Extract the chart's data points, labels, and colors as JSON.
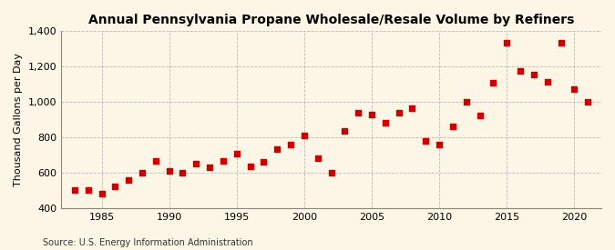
{
  "title": "Annual Pennsylvania Propane Wholesale/Resale Volume by Refiners",
  "ylabel": "Thousand Gallons per Day",
  "source": "Source: U.S. Energy Information Administration",
  "background_color": "#fdf5e6",
  "marker_color": "#cc0000",
  "xlim": [
    1982,
    2022
  ],
  "ylim": [
    400,
    1400
  ],
  "yticks": [
    400,
    600,
    800,
    1000,
    1200,
    1400
  ],
  "ytick_labels": [
    "400",
    "600",
    "800",
    "1,000",
    "1,200",
    "1,400"
  ],
  "xticks": [
    1985,
    1990,
    1995,
    2000,
    2005,
    2010,
    2015,
    2020
  ],
  "years": [
    1983,
    1984,
    1985,
    1986,
    1987,
    1988,
    1989,
    1990,
    1991,
    1992,
    1993,
    1994,
    1995,
    1996,
    1997,
    1998,
    1999,
    2000,
    2001,
    2002,
    2003,
    2004,
    2005,
    2006,
    2007,
    2008,
    2009,
    2010,
    2011,
    2012,
    2013,
    2014,
    2015,
    2016,
    2017,
    2018,
    2019,
    2020,
    2021
  ],
  "values": [
    500,
    500,
    480,
    520,
    560,
    600,
    665,
    610,
    600,
    650,
    630,
    665,
    705,
    635,
    660,
    735,
    760,
    810,
    680,
    600,
    835,
    940,
    930,
    880,
    940,
    965,
    780,
    760,
    860,
    1000,
    925,
    1110,
    1335,
    1175,
    1155,
    1115,
    1335,
    1070,
    1000
  ]
}
